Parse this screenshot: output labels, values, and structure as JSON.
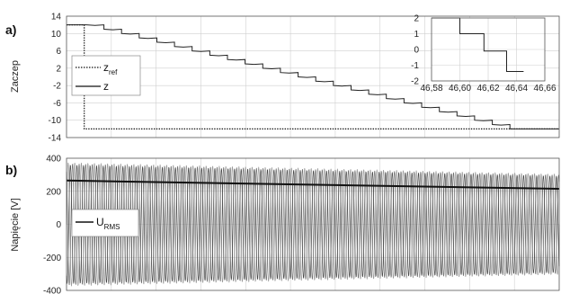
{
  "chart_data": [
    {
      "type": "line",
      "panel_label": "a)",
      "ylabel": "Zaczep",
      "ylim": [
        -14,
        14
      ],
      "yticks": [
        "14",
        "10",
        "6",
        "2",
        "-2",
        "-6",
        "-10",
        "-14"
      ],
      "grid": true,
      "legend_position": "left",
      "legend": [
        {
          "main": "z",
          "sub": "ref",
          "style": "dotted"
        },
        {
          "main": "z",
          "sub": "",
          "style": "solid"
        }
      ],
      "series": [
        {
          "style": "dotted",
          "x": [
            0,
            0.036,
            0.036,
            1
          ],
          "y": [
            12,
            12,
            -12,
            -12
          ]
        },
        {
          "style": "solid",
          "x": [
            0,
            0.04,
            1
          ],
          "y": [
            12,
            12,
            -12
          ]
        }
      ],
      "inset": {
        "xlim": [
          46.58,
          46.66
        ],
        "ylim": [
          -2,
          2
        ],
        "xticks": [
          "46,58",
          "46,60",
          "46,62",
          "46,64",
          "46,66"
        ],
        "yticks": [
          "2",
          "1",
          "0",
          "-1",
          "-2"
        ],
        "series": [
          {
            "style": "solid",
            "x": [
              46.58,
              46.6,
              46.6,
              46.617,
              46.617,
              46.633,
              46.633,
              46.645
            ],
            "y": [
              2,
              2,
              1,
              1,
              -0.1,
              -0.1,
              -1.4,
              -1.4
            ]
          }
        ]
      }
    },
    {
      "type": "line",
      "panel_label": "b)",
      "ylabel": "Napięcie [V]",
      "ylim": [
        -400,
        400
      ],
      "yticks": [
        "400",
        "200",
        "0",
        "-200",
        "-400"
      ],
      "grid": true,
      "legend_position": "left",
      "legend": [
        {
          "main": "U",
          "sub": "RMS",
          "style": "solid"
        }
      ],
      "urms": {
        "x": [
          0,
          1
        ],
        "y": [
          265,
          215
        ]
      },
      "oscillation": {
        "amplitude_start": 375,
        "amplitude_end": 305,
        "visible_cycles": 75
      }
    }
  ]
}
